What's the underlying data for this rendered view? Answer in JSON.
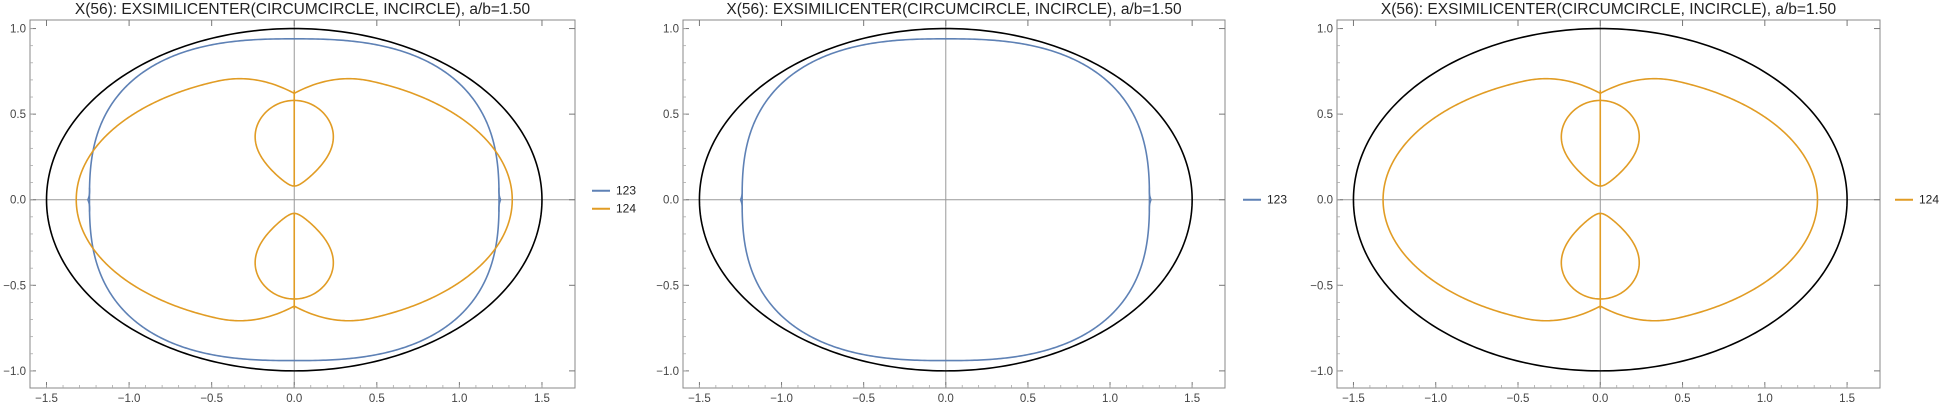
{
  "chart_data": [
    {
      "type": "line",
      "title": "X(56): EXSIMILICENTER(CIRCUMCIRCLE, INCIRCLE), a/b=1.50",
      "xlim": [
        -1.6,
        1.7
      ],
      "ylim": [
        -1.1,
        1.05
      ],
      "xticks": [
        -1.5,
        -1.0,
        -0.5,
        0.0,
        0.5,
        1.0,
        1.5
      ],
      "xtick_labels": [
        "−1.5",
        "−1.0",
        "−0.5",
        "0.0",
        "0.5",
        "1.0",
        "1.5"
      ],
      "yticks": [
        -1.0,
        -0.5,
        0.0,
        0.5,
        1.0
      ],
      "ytick_labels": [
        "−1.0",
        "−0.5",
        "0.0",
        "0.5",
        "1.0"
      ],
      "grid": false,
      "legend_position": "right",
      "reference_ellipse": {
        "a": 1.5,
        "b": 1.0,
        "color": "#000000"
      },
      "series": [
        {
          "name": "123",
          "color": "#5E81B5",
          "shape": "outer_oval",
          "extent_x": 1.28,
          "extent_y": 0.94
        },
        {
          "name": "124",
          "color": "#E19C24",
          "shape": "rosette",
          "extent_x": 1.32,
          "extent_y": 0.74,
          "lobe_center_y": 0.33,
          "lobe_radius": 0.25
        }
      ]
    },
    {
      "type": "line",
      "title": "X(56): EXSIMILICENTER(CIRCUMCIRCLE, INCIRCLE), a/b=1.50",
      "xlim": [
        -1.6,
        1.7
      ],
      "ylim": [
        -1.1,
        1.05
      ],
      "xticks": [
        -1.5,
        -1.0,
        -0.5,
        0.0,
        0.5,
        1.0,
        1.5
      ],
      "xtick_labels": [
        "−1.5",
        "−1.0",
        "−0.5",
        "0.0",
        "0.5",
        "1.0",
        "1.5"
      ],
      "yticks": [
        -1.0,
        -0.5,
        0.0,
        0.5,
        1.0
      ],
      "ytick_labels": [
        "−1.0",
        "−0.5",
        "0.0",
        "0.5",
        "1.0"
      ],
      "grid": false,
      "legend_position": "right",
      "reference_ellipse": {
        "a": 1.5,
        "b": 1.0,
        "color": "#000000"
      },
      "series": [
        {
          "name": "123",
          "color": "#5E81B5",
          "shape": "outer_oval",
          "extent_x": 1.28,
          "extent_y": 0.94
        }
      ]
    },
    {
      "type": "line",
      "title": "X(56): EXSIMILICENTER(CIRCUMCIRCLE, INCIRCLE), a/b=1.50",
      "xlim": [
        -1.6,
        1.7
      ],
      "ylim": [
        -1.1,
        1.05
      ],
      "xticks": [
        -1.5,
        -1.0,
        -0.5,
        0.0,
        0.5,
        1.0,
        1.5
      ],
      "xtick_labels": [
        "−1.5",
        "−1.0",
        "−0.5",
        "0.0",
        "0.5",
        "1.0",
        "1.5"
      ],
      "yticks": [
        -1.0,
        -0.5,
        0.0,
        0.5,
        1.0
      ],
      "ytick_labels": [
        "−1.0",
        "−0.5",
        "0.0",
        "0.5",
        "1.0"
      ],
      "grid": false,
      "legend_position": "right",
      "reference_ellipse": {
        "a": 1.5,
        "b": 1.0,
        "color": "#000000"
      },
      "series": [
        {
          "name": "124",
          "color": "#E19C24",
          "shape": "rosette",
          "extent_x": 1.32,
          "extent_y": 0.74,
          "lobe_center_y": 0.33,
          "lobe_radius": 0.25
        }
      ]
    }
  ]
}
